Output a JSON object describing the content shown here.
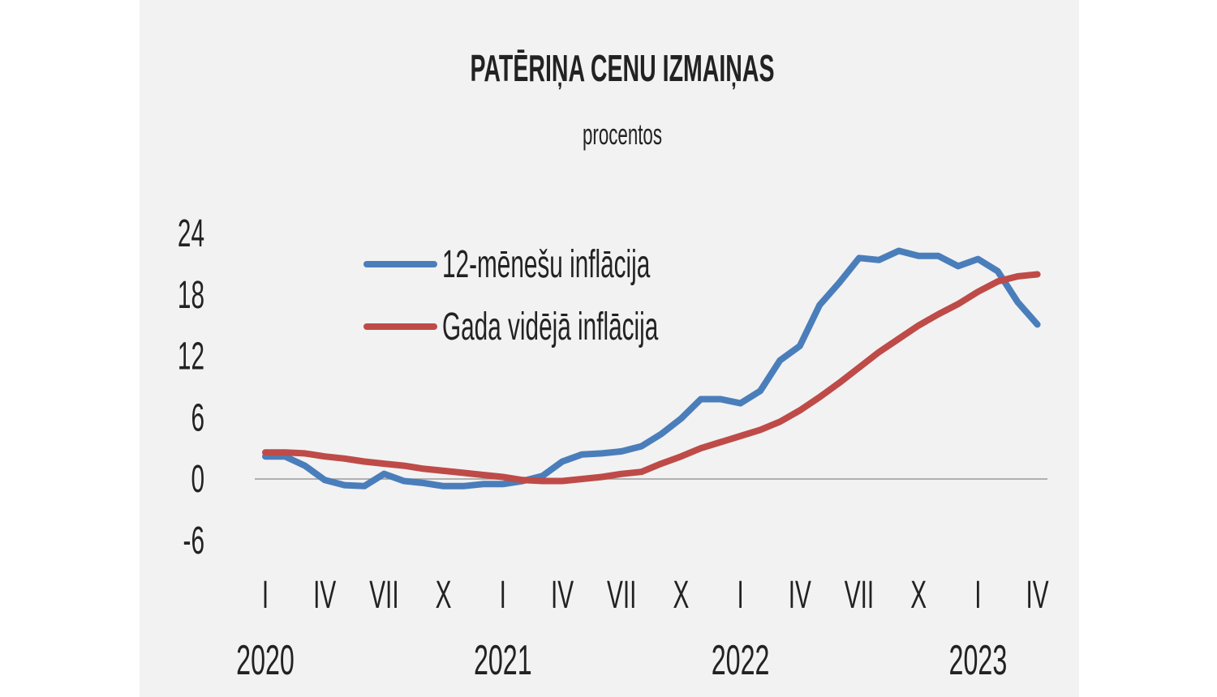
{
  "chart_data": {
    "type": "line",
    "title": "PATĒRIŅA CENU IZMAIŅAS",
    "subtitle": "procentos",
    "xlabel": "",
    "ylabel": "",
    "ylim": [
      -6,
      24
    ],
    "yticks": [
      "24",
      "18",
      "12",
      "6",
      "0",
      "-6"
    ],
    "ytick_values": [
      24,
      18,
      12,
      6,
      0,
      -6
    ],
    "x_start": "2020-01",
    "x_end": "2023-04",
    "x_frequency": "monthly",
    "xtick_labels": [
      {
        "month": 0,
        "label": "I"
      },
      {
        "month": 3,
        "label": "IV"
      },
      {
        "month": 6,
        "label": "VII"
      },
      {
        "month": 9,
        "label": "X"
      },
      {
        "month": 12,
        "label": "I"
      },
      {
        "month": 15,
        "label": "IV"
      },
      {
        "month": 18,
        "label": "VII"
      },
      {
        "month": 21,
        "label": "X"
      },
      {
        "month": 24,
        "label": "I"
      },
      {
        "month": 27,
        "label": "IV"
      },
      {
        "month": 30,
        "label": "VII"
      },
      {
        "month": 33,
        "label": "X"
      },
      {
        "month": 36,
        "label": "I"
      },
      {
        "month": 39,
        "label": "IV"
      }
    ],
    "year_labels": [
      {
        "month": 0,
        "label": "2020"
      },
      {
        "month": 12,
        "label": "2021"
      },
      {
        "month": 24,
        "label": "2022"
      },
      {
        "month": 36,
        "label": "2023"
      }
    ],
    "grid": false,
    "legend_position": "top-left",
    "series": [
      {
        "name": "12-mēnešu inflācija",
        "color": "#4a7ebb",
        "values": [
          2.2,
          2.2,
          1.3,
          -0.1,
          -0.6,
          -0.7,
          0.5,
          -0.2,
          -0.4,
          -0.7,
          -0.7,
          -0.5,
          -0.5,
          -0.2,
          0.3,
          1.7,
          2.4,
          2.5,
          2.7,
          3.2,
          4.4,
          5.9,
          7.8,
          7.8,
          7.4,
          8.6,
          11.6,
          13.0,
          17.0,
          19.2,
          21.6,
          21.4,
          22.3,
          21.8,
          21.8,
          20.8,
          21.5,
          20.3,
          17.3,
          15.1
        ]
      },
      {
        "name": "Gada vidējā inflācija",
        "color": "#be4b48",
        "values": [
          2.6,
          2.6,
          2.5,
          2.2,
          2.0,
          1.7,
          1.5,
          1.3,
          1.0,
          0.8,
          0.6,
          0.4,
          0.2,
          -0.1,
          -0.2,
          -0.2,
          0.0,
          0.2,
          0.5,
          0.7,
          1.5,
          2.2,
          3.0,
          3.6,
          4.2,
          4.8,
          5.6,
          6.7,
          8.0,
          9.4,
          10.9,
          12.4,
          13.7,
          15.0,
          16.1,
          17.1,
          18.3,
          19.3,
          19.8,
          20.0
        ]
      }
    ]
  }
}
